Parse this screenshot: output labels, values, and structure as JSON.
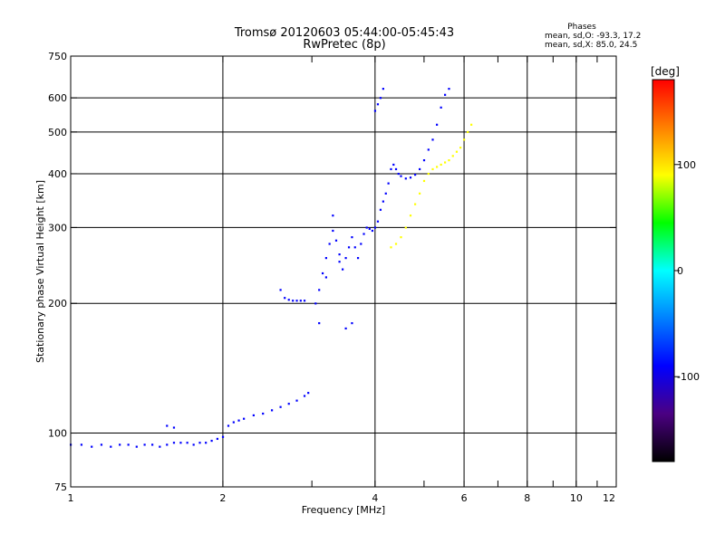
{
  "chart_data": {
    "type": "scatter",
    "title": "Tromsø 20120603 05:44:00-05:45:43",
    "subtitle": "RwPretec (8p)",
    "stats": {
      "heading": "Phases",
      "line_o": "mean, sd,O:  -93.3, 17.2",
      "line_x": "mean, sd,X:  85.0, 24.5"
    },
    "xlabel": "Frequency [MHz]",
    "ylabel": "Stationary phase Virtual Height [km]",
    "xscale": "log",
    "yscale": "log",
    "xlim": [
      1,
      12
    ],
    "ylim": [
      75,
      750
    ],
    "xticks": [
      1,
      2,
      3,
      4,
      5,
      6,
      7,
      8,
      9,
      10,
      11,
      12
    ],
    "xtick_labels": [
      {
        "v": 1,
        "t": "1"
      },
      {
        "v": 2,
        "t": "2"
      },
      {
        "v": 4,
        "t": "4"
      },
      {
        "v": 6,
        "t": "6"
      },
      {
        "v": 8,
        "t": "8"
      },
      {
        "v": 10,
        "t": "10"
      },
      {
        "v": 12,
        "t": "12"
      }
    ],
    "yticks": [
      75,
      100,
      200,
      300,
      400,
      500,
      600,
      750
    ],
    "xgrid": [
      2,
      4,
      6,
      8,
      10
    ],
    "ygrid": [
      100,
      200,
      300,
      400,
      500,
      600
    ],
    "grid": true,
    "colorbar": {
      "label": "[deg]",
      "range": [
        -180,
        180
      ],
      "ticks": [
        100,
        0,
        -100
      ],
      "colors": [
        "#000000",
        "#4b0082",
        "#0000ff",
        "#0080ff",
        "#00ffff",
        "#00ff00",
        "#ffff00",
        "#ff8000",
        "#ff0000"
      ]
    },
    "series": [
      {
        "mode": "O",
        "color_phase": -100,
        "points": [
          [
            1.0,
            94
          ],
          [
            1.05,
            94
          ],
          [
            1.1,
            93
          ],
          [
            1.15,
            94
          ],
          [
            1.2,
            93
          ],
          [
            1.25,
            94
          ],
          [
            1.3,
            94
          ],
          [
            1.35,
            93
          ],
          [
            1.4,
            94
          ],
          [
            1.45,
            94
          ],
          [
            1.5,
            93
          ],
          [
            1.55,
            94
          ],
          [
            1.6,
            95
          ],
          [
            1.65,
            95
          ],
          [
            1.7,
            95
          ],
          [
            1.75,
            94
          ],
          [
            1.8,
            95
          ],
          [
            1.85,
            95
          ],
          [
            1.9,
            96
          ],
          [
            1.95,
            97
          ],
          [
            2.0,
            98
          ],
          [
            1.55,
            104
          ],
          [
            1.6,
            103
          ],
          [
            2.05,
            104
          ],
          [
            2.1,
            106
          ],
          [
            2.15,
            107
          ],
          [
            2.2,
            108
          ],
          [
            2.3,
            110
          ],
          [
            2.4,
            111
          ],
          [
            2.5,
            113
          ],
          [
            2.6,
            115
          ],
          [
            2.7,
            117
          ],
          [
            2.8,
            119
          ],
          [
            2.9,
            122
          ],
          [
            2.95,
            124
          ],
          [
            2.6,
            215
          ],
          [
            2.65,
            206
          ],
          [
            2.7,
            204
          ],
          [
            2.75,
            203
          ],
          [
            2.8,
            203
          ],
          [
            2.85,
            203
          ],
          [
            2.9,
            203
          ],
          [
            3.05,
            200
          ],
          [
            3.1,
            215
          ],
          [
            3.15,
            235
          ],
          [
            3.2,
            255
          ],
          [
            3.25,
            275
          ],
          [
            3.3,
            295
          ],
          [
            3.35,
            280
          ],
          [
            3.4,
            260
          ],
          [
            3.45,
            240
          ],
          [
            3.5,
            255
          ],
          [
            3.55,
            270
          ],
          [
            3.6,
            285
          ],
          [
            3.65,
            270
          ],
          [
            3.7,
            255
          ],
          [
            3.75,
            275
          ],
          [
            3.8,
            290
          ],
          [
            3.85,
            300
          ],
          [
            3.9,
            298
          ],
          [
            3.95,
            295
          ],
          [
            4.0,
            300
          ],
          [
            4.05,
            310
          ],
          [
            4.1,
            330
          ],
          [
            4.15,
            345
          ],
          [
            4.2,
            360
          ],
          [
            4.25,
            380
          ],
          [
            4.3,
            410
          ],
          [
            4.35,
            420
          ],
          [
            4.4,
            410
          ],
          [
            4.45,
            400
          ],
          [
            4.5,
            395
          ],
          [
            4.6,
            390
          ],
          [
            4.7,
            392
          ],
          [
            4.8,
            398
          ],
          [
            4.9,
            410
          ],
          [
            5.0,
            430
          ],
          [
            5.1,
            455
          ],
          [
            5.2,
            480
          ],
          [
            5.3,
            520
          ],
          [
            5.4,
            570
          ],
          [
            5.5,
            610
          ],
          [
            5.6,
            630
          ],
          [
            4.0,
            560
          ],
          [
            4.05,
            580
          ],
          [
            4.1,
            600
          ],
          [
            4.15,
            630
          ],
          [
            3.1,
            180
          ],
          [
            3.5,
            175
          ],
          [
            3.6,
            180
          ],
          [
            3.2,
            230
          ],
          [
            3.3,
            320
          ],
          [
            3.4,
            250
          ]
        ]
      },
      {
        "mode": "X",
        "color_phase": 100,
        "points": [
          [
            4.3,
            270
          ],
          [
            4.4,
            275
          ],
          [
            4.5,
            285
          ],
          [
            4.6,
            300
          ],
          [
            4.7,
            320
          ],
          [
            4.8,
            340
          ],
          [
            4.9,
            360
          ],
          [
            5.0,
            385
          ],
          [
            5.1,
            400
          ],
          [
            5.2,
            410
          ],
          [
            5.3,
            415
          ],
          [
            5.4,
            420
          ],
          [
            5.5,
            425
          ],
          [
            5.6,
            430
          ],
          [
            5.7,
            440
          ],
          [
            5.8,
            450
          ],
          [
            5.9,
            460
          ],
          [
            6.0,
            480
          ],
          [
            6.1,
            500
          ],
          [
            6.2,
            520
          ]
        ]
      }
    ]
  }
}
